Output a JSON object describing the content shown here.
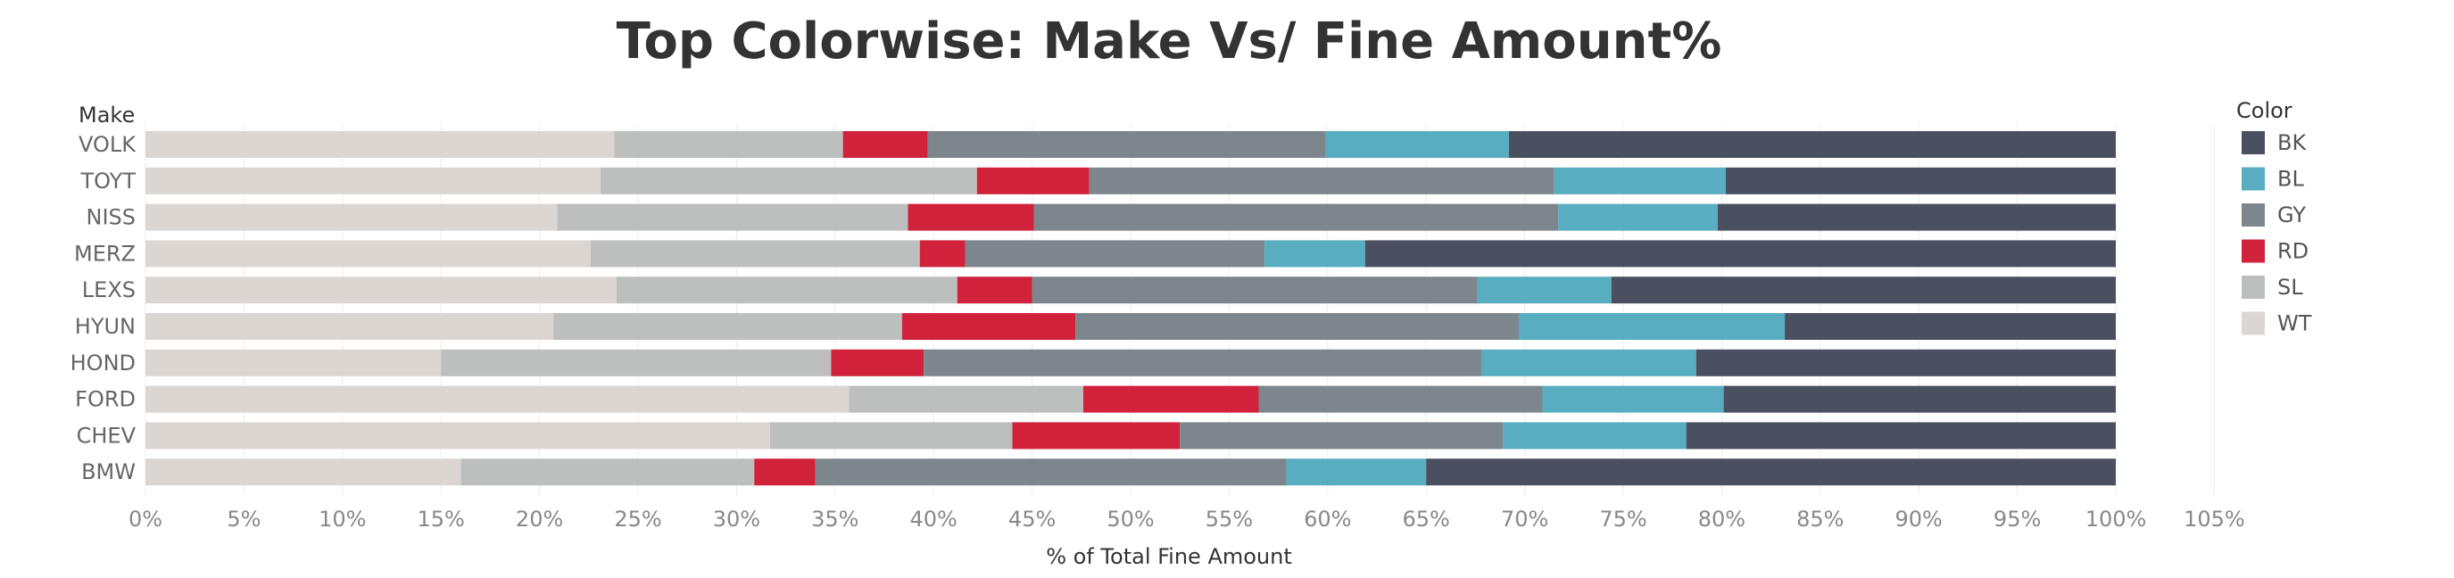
{
  "chart_data": {
    "type": "bar",
    "orientation": "horizontal",
    "stacked": true,
    "title": "Top Colorwise: Make Vs/ Fine Amount%",
    "xlabel": "% of Total Fine Amount",
    "ylabel": "Make",
    "xlim": [
      0,
      105
    ],
    "x_ticks": [
      "0%",
      "5%",
      "10%",
      "15%",
      "20%",
      "25%",
      "30%",
      "35%",
      "40%",
      "45%",
      "50%",
      "55%",
      "60%",
      "65%",
      "70%",
      "75%",
      "80%",
      "85%",
      "90%",
      "95%",
      "100%",
      "105%"
    ],
    "grid": "vertical",
    "legend": {
      "title": "Color",
      "position": "right"
    },
    "categories": [
      "VOLK",
      "TOYT",
      "NISS",
      "MERZ",
      "LEXS",
      "HYUN",
      "HOND",
      "FORD",
      "CHEV",
      "BMW"
    ],
    "series": [
      {
        "name": "WT",
        "color": "#DCD6D3",
        "values": [
          23.8,
          23.1,
          20.9,
          22.6,
          23.9,
          20.7,
          15.0,
          35.7,
          31.7,
          16.0
        ]
      },
      {
        "name": "SL",
        "color": "#BDBFBE",
        "values": [
          11.6,
          19.1,
          17.8,
          16.7,
          17.3,
          17.7,
          19.8,
          11.9,
          12.3,
          14.9
        ]
      },
      {
        "name": "RD",
        "color": "#D1223C",
        "values": [
          4.3,
          5.7,
          6.4,
          2.3,
          3.8,
          8.8,
          4.7,
          8.9,
          8.5,
          3.1
        ]
      },
      {
        "name": "GY",
        "color": "#7C868C",
        "values": [
          20.2,
          23.6,
          26.6,
          15.2,
          22.6,
          22.5,
          28.3,
          14.4,
          16.4,
          23.9
        ]
      },
      {
        "name": "BL",
        "color": "#59ADC0",
        "values": [
          9.3,
          8.7,
          8.1,
          5.1,
          6.8,
          13.5,
          10.9,
          9.2,
          9.3,
          7.1
        ]
      },
      {
        "name": "BK",
        "color": "#4A5060",
        "values": [
          30.8,
          19.8,
          20.2,
          38.1,
          25.6,
          16.8,
          21.3,
          19.9,
          21.8,
          35.0
        ]
      }
    ],
    "legend_order": [
      "BK",
      "BL",
      "GY",
      "RD",
      "SL",
      "WT"
    ]
  }
}
